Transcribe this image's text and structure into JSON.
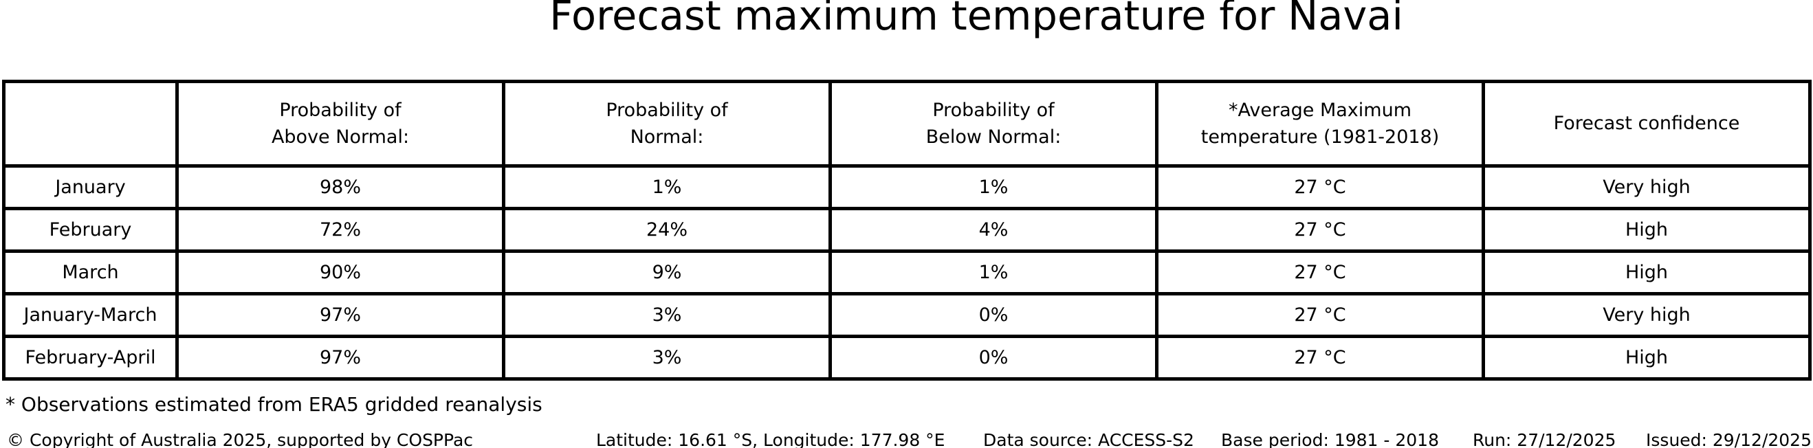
{
  "chart_data": {
    "type": "table",
    "title": "Forecast maximum temperature for Navai",
    "columns": [
      "Probability of\nAbove Normal:",
      "Probability of\nNormal:",
      "Probability of\nBelow Normal:",
      "*Average Maximum\ntemperature (1981-2018)",
      "Forecast confidence"
    ],
    "row_labels": [
      "January",
      "February",
      "March",
      "January-March",
      "February-April"
    ],
    "rows": [
      [
        "98%",
        "1%",
        "1%",
        "27 °C",
        "Very high"
      ],
      [
        "72%",
        "24%",
        "4%",
        "27 °C",
        "High"
      ],
      [
        "90%",
        "9%",
        "1%",
        "27 °C",
        "High"
      ],
      [
        "97%",
        "3%",
        "0%",
        "27 °C",
        "Very high"
      ],
      [
        "97%",
        "3%",
        "0%",
        "27 °C",
        "High"
      ]
    ]
  },
  "footnote": "* Observations estimated from ERA5 gridded reanalysis",
  "footer": {
    "copyright": "© Copyright of Australia 2025, supported by COSPPac",
    "location": "Latitude: 16.61 °S, Longitude: 177.98 °E",
    "data_source": "Data source: ACCESS-S2",
    "base_period": "Base period: 1981 - 2018",
    "run": "Run: 27/12/2025",
    "issued": "Issued: 29/12/2025"
  }
}
